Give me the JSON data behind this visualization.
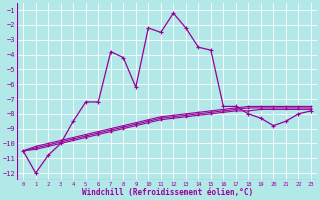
{
  "xlabel": "Windchill (Refroidissement éolien,°C)",
  "bg_color": "#b2e8e8",
  "grid_color": "#ffffff",
  "line_color": "#990099",
  "xlim": [
    -0.5,
    23.5
  ],
  "ylim": [
    -12.5,
    -0.5
  ],
  "xticks": [
    0,
    1,
    2,
    3,
    4,
    5,
    6,
    7,
    8,
    9,
    10,
    11,
    12,
    13,
    14,
    15,
    16,
    17,
    18,
    19,
    20,
    21,
    22,
    23
  ],
  "yticks": [
    -12,
    -11,
    -10,
    -9,
    -8,
    -7,
    -6,
    -5,
    -4,
    -3,
    -2,
    -1
  ],
  "main_x": [
    0,
    1,
    2,
    3,
    4,
    5,
    6,
    7,
    8,
    9,
    10,
    11,
    12,
    13,
    14,
    15,
    16,
    17,
    18,
    19,
    20,
    21,
    22,
    23
  ],
  "main_y": [
    -10.5,
    -12.0,
    -10.8,
    -10.0,
    -8.5,
    -7.2,
    -7.2,
    -3.8,
    -4.2,
    -6.2,
    -2.2,
    -2.5,
    -1.2,
    -2.2,
    -3.5,
    -3.7,
    -7.5,
    -7.5,
    -8.0,
    -8.3,
    -8.8,
    -8.5,
    -8.0,
    -7.8
  ],
  "diag1_x": [
    0,
    1,
    2,
    3,
    4,
    5,
    6,
    7,
    8,
    9,
    10,
    11,
    12,
    13,
    14,
    15,
    16,
    17,
    18,
    19,
    20,
    21,
    22,
    23
  ],
  "diag1_y": [
    -10.5,
    -10.4,
    -10.2,
    -10.0,
    -9.8,
    -9.6,
    -9.4,
    -9.2,
    -9.0,
    -8.8,
    -8.6,
    -8.4,
    -8.3,
    -8.2,
    -8.1,
    -8.0,
    -7.9,
    -7.8,
    -7.8,
    -7.7,
    -7.7,
    -7.7,
    -7.7,
    -7.7
  ],
  "diag2_x": [
    0,
    1,
    2,
    3,
    4,
    5,
    6,
    7,
    8,
    9,
    10,
    11,
    12,
    13,
    14,
    15,
    16,
    17,
    18,
    19,
    20,
    21,
    22,
    23
  ],
  "diag2_y": [
    -10.5,
    -10.3,
    -10.1,
    -9.9,
    -9.7,
    -9.5,
    -9.3,
    -9.1,
    -8.9,
    -8.7,
    -8.5,
    -8.3,
    -8.2,
    -8.1,
    -8.0,
    -7.9,
    -7.8,
    -7.7,
    -7.6,
    -7.6,
    -7.6,
    -7.6,
    -7.6,
    -7.6
  ],
  "diag3_x": [
    0,
    1,
    2,
    3,
    4,
    5,
    6,
    7,
    8,
    9,
    10,
    11,
    12,
    13,
    14,
    15,
    16,
    17,
    18,
    19,
    20,
    21,
    22,
    23
  ],
  "diag3_y": [
    -10.5,
    -10.2,
    -10.0,
    -9.8,
    -9.6,
    -9.4,
    -9.2,
    -9.0,
    -8.8,
    -8.6,
    -8.4,
    -8.2,
    -8.1,
    -8.0,
    -7.9,
    -7.8,
    -7.7,
    -7.6,
    -7.5,
    -7.5,
    -7.5,
    -7.5,
    -7.5,
    -7.5
  ]
}
